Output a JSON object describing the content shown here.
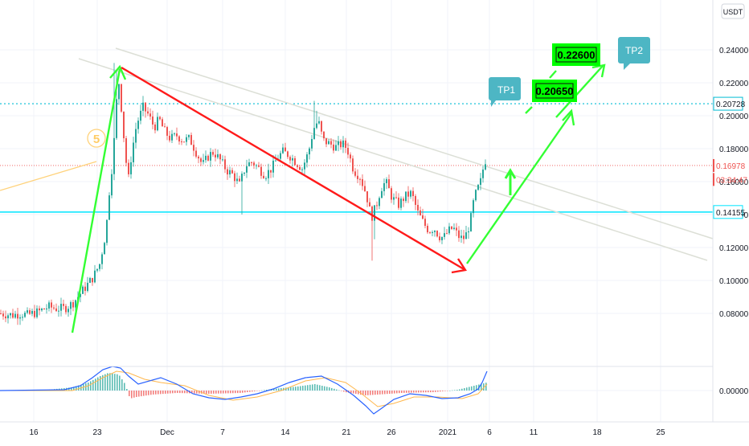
{
  "chart_data": {
    "type": "candlestick",
    "currency": "USDT",
    "price_axis": {
      "ticks": [
        "0.24000",
        "0.22000",
        "0.20000",
        "0.18000",
        "0.16000",
        "0.14000",
        "0.12000",
        "0.10000",
        "0.08000"
      ],
      "tick_values": [
        0.24,
        0.22,
        0.2,
        0.18,
        0.16,
        0.14,
        0.12,
        0.1,
        0.08
      ],
      "range": [
        0.061,
        0.259
      ]
    },
    "oscillator_axis": {
      "ticks": [
        "0.00000"
      ]
    },
    "time_axis": {
      "ticks": [
        "16",
        "23",
        "Dec",
        "7",
        "14",
        "21",
        "26",
        "2021",
        "6",
        "11",
        "18",
        "25"
      ]
    },
    "price_labels": [
      {
        "id": "upper-resistance",
        "text": "0.20728",
        "value": 0.20728,
        "color": "#00bcd4",
        "style": "dotted"
      },
      {
        "id": "last-price",
        "text": "0.16978",
        "value": 0.16978,
        "color": "#ef5350",
        "style": "dotted"
      },
      {
        "id": "countdown",
        "text": "03:34:47",
        "value": 0.1613,
        "color": "#ef5350",
        "style": "none"
      },
      {
        "id": "support",
        "text": "0.14155",
        "value": 0.14155,
        "color": "#00e5ff",
        "style": "solid"
      }
    ],
    "annotations": {
      "wave_label": "5",
      "targets": [
        {
          "id": "tp1",
          "callout": "TP1",
          "target": "0.20650"
        },
        {
          "id": "tp2",
          "callout": "TP2",
          "target": "0.22600"
        }
      ]
    },
    "colors": {
      "up": "#26a69a",
      "down": "#ef5350",
      "arrow_green": "#33ff33",
      "arrow_red": "#ff1a1a",
      "callout": "#4db6c4",
      "target_box": "#00ff00",
      "channel": "#dcdfd6",
      "wave_line": "#ffd27a",
      "macd": "#2962ff",
      "signal": "#ffb74d"
    }
  }
}
